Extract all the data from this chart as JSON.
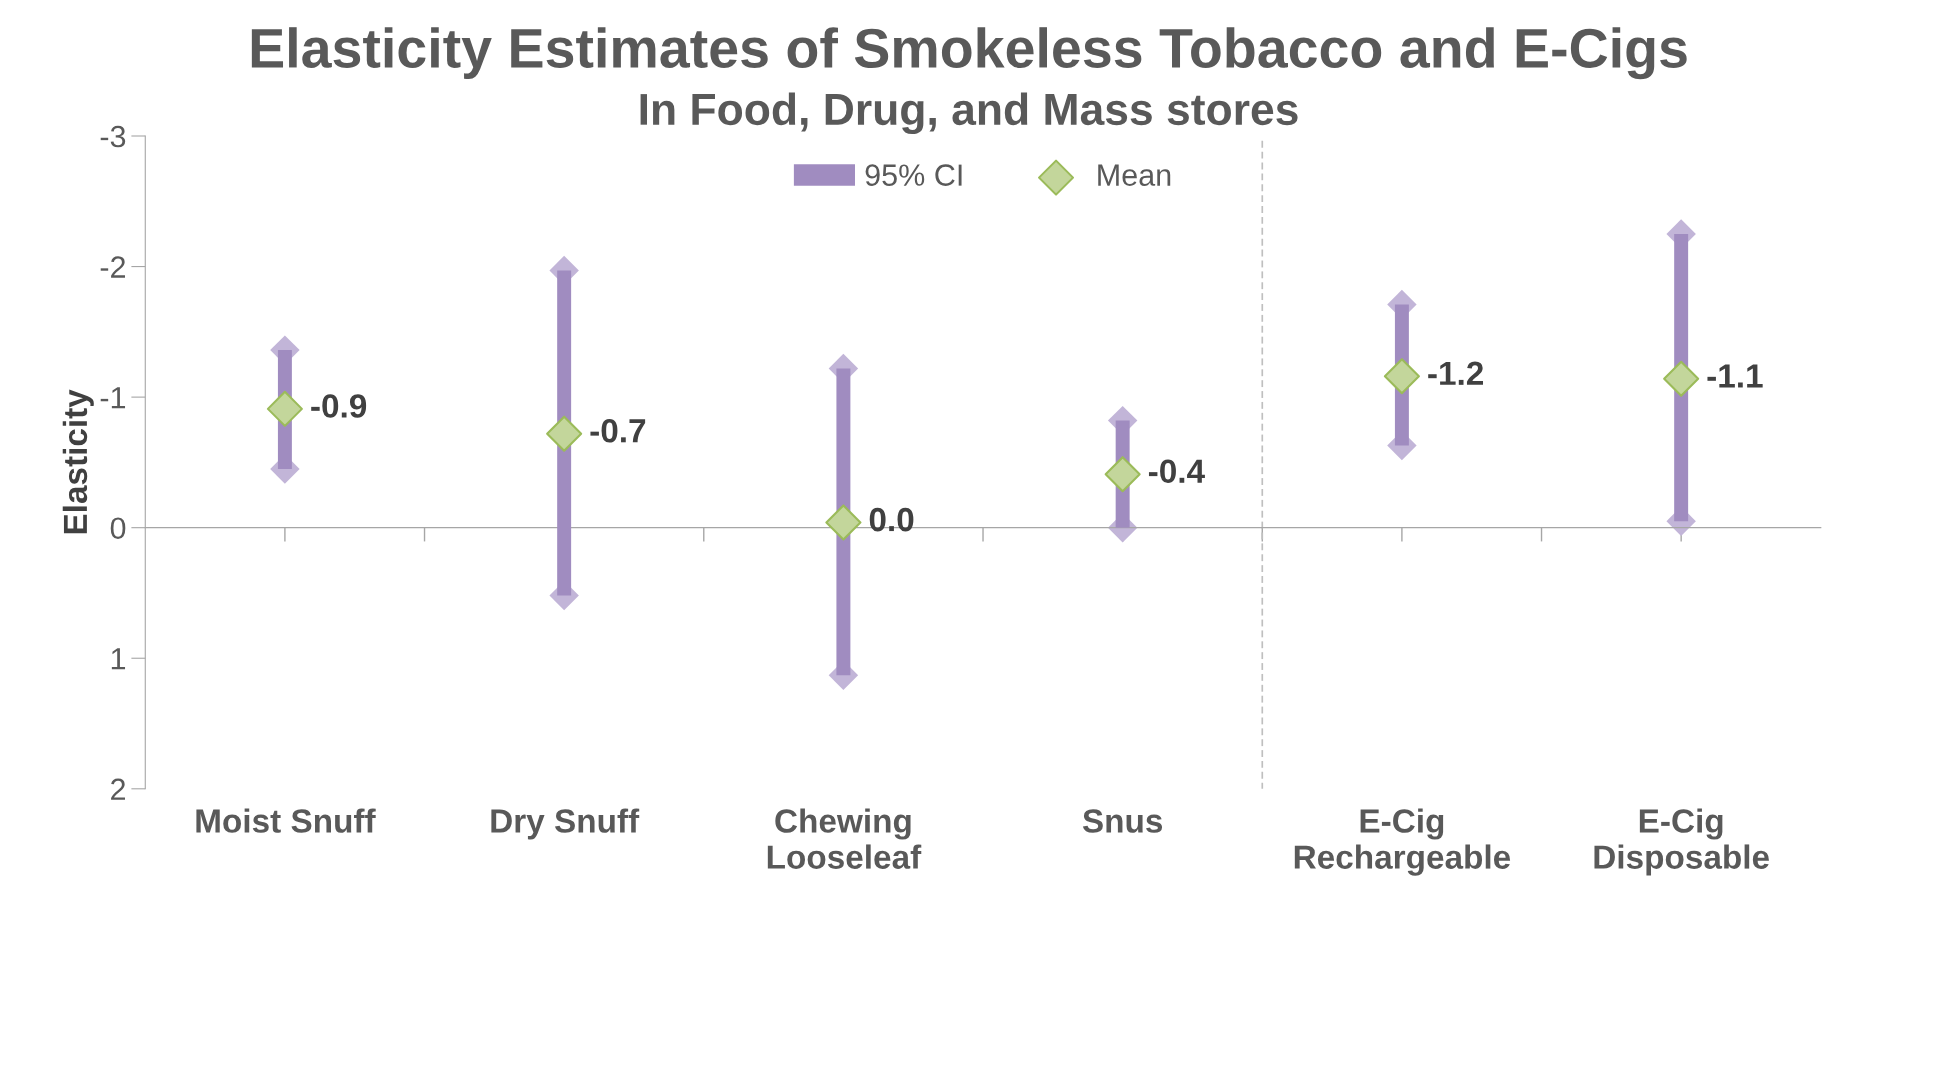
{
  "chart_data": {
    "type": "bar",
    "title": "Elasticity Estimates of Smokeless Tobacco and E-Cigs",
    "subtitle": "In Food, Drug, and Mass stores",
    "ylabel": "Elasticity",
    "categories": [
      "Moist Snuff",
      "Dry Snuff",
      "Chewing\nLooseleaf",
      "Snus",
      "E-Cig\nRechargeable",
      "E-Cig\nDisposable"
    ],
    "series": [
      {
        "name": "95% CI",
        "type": "bar",
        "color": "#a08cc0",
        "marker": "diamond",
        "base": [
          -1.36,
          -1.97,
          -1.22,
          -0.82,
          -1.71,
          -2.25
        ],
        "values": [
          0.91,
          2.49,
          2.35,
          0.82,
          1.08,
          2.2
        ]
      },
      {
        "name": "Mean",
        "type": "scatter",
        "color": "#c3d69b",
        "marker": "diamond",
        "values": [
          -0.91,
          -0.72,
          -0.04,
          -0.41,
          -1.16,
          -1.14
        ],
        "value_labels": [
          "-0.9",
          "-0.7",
          "0.0",
          "-0.4",
          "-1.2",
          "-1.1"
        ]
      }
    ],
    "ylim": [
      2,
      -3
    ],
    "yticks": [
      -3,
      -2,
      -1,
      0,
      1,
      2
    ],
    "legend": "top"
  }
}
